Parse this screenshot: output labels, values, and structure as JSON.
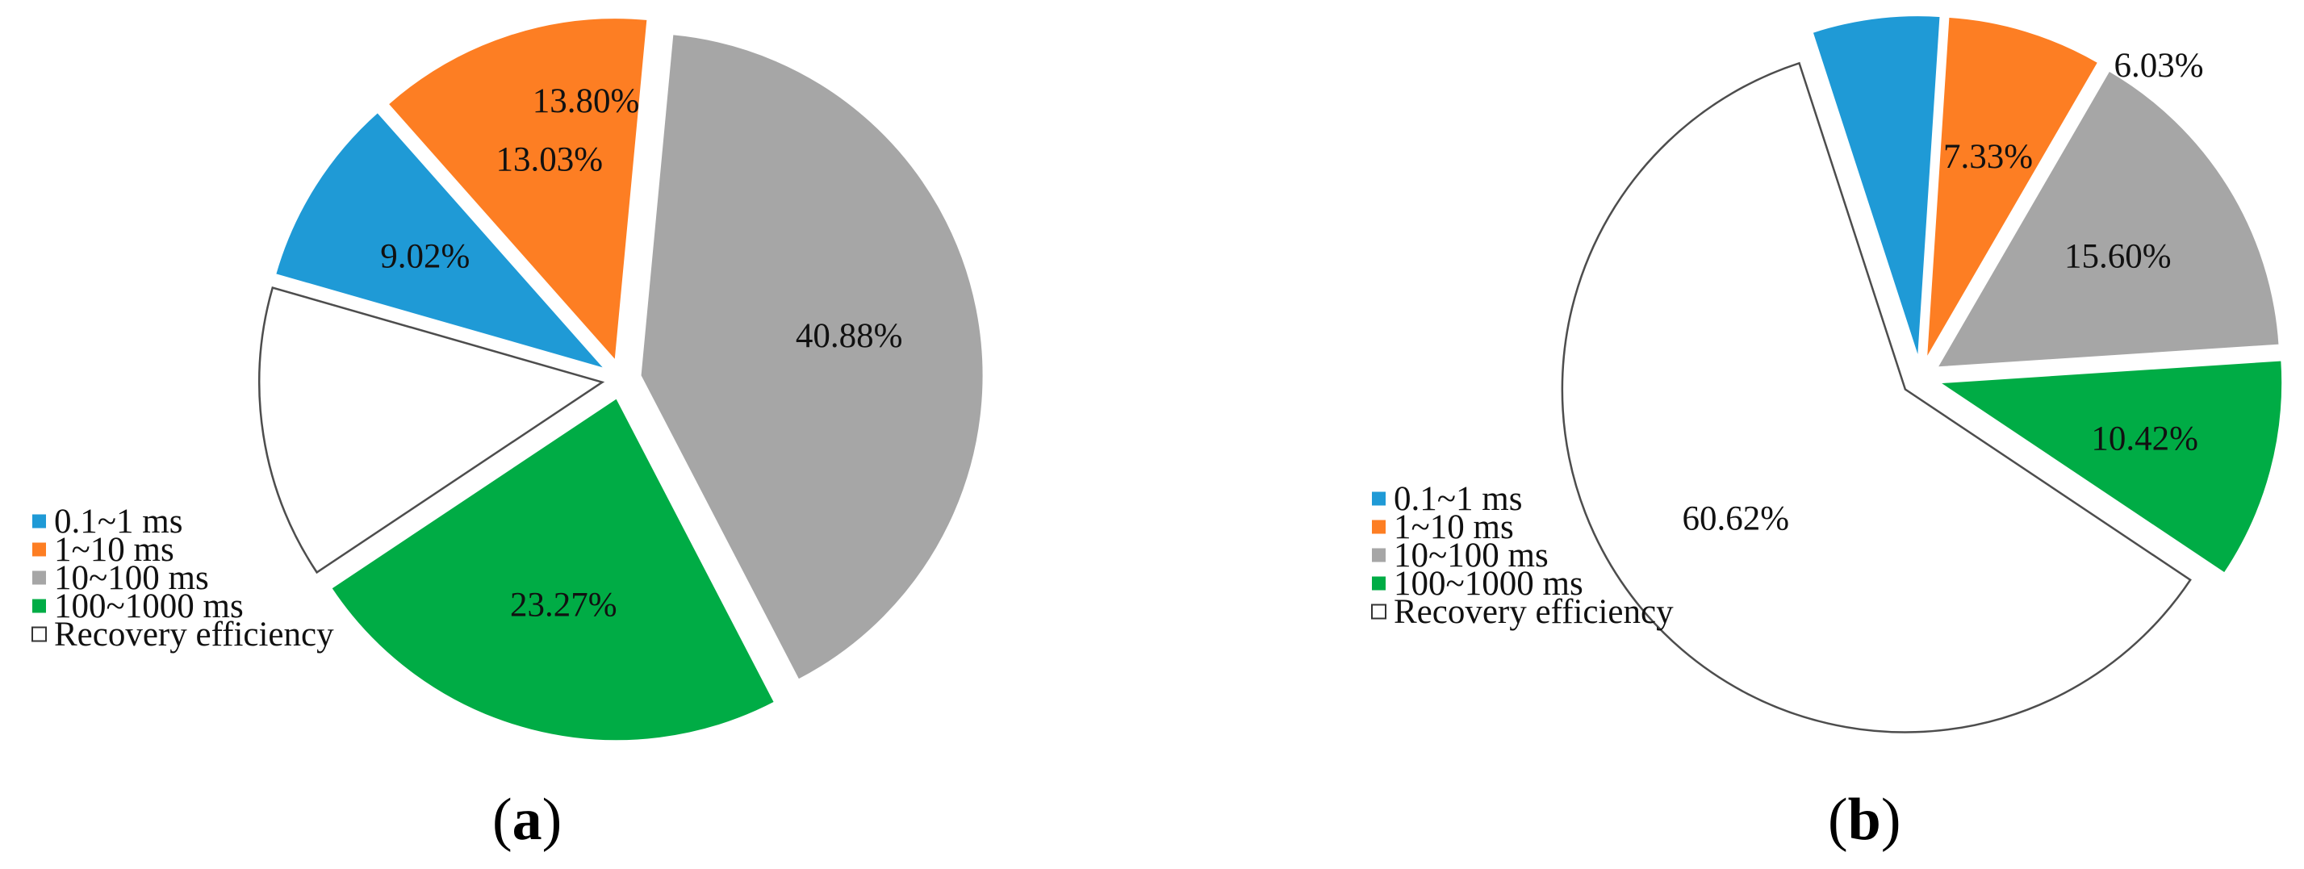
{
  "colors": {
    "0.1~1 ms": "#1f9ad6",
    "1~10 ms": "#fd7e23",
    "10~100 ms": "#a6a6a6",
    "100~1000 ms": "#00ac45",
    "Recovery efficiency": "#ffffff",
    "outline": "#4d4d4d"
  },
  "legend": [
    "0.1~1 ms",
    "1~10 ms",
    "10~100 ms",
    "100~1000 ms",
    "Recovery efficiency"
  ],
  "chart_data": [
    {
      "type": "pie",
      "panel_label": "a",
      "legend_placement": "bottom-left",
      "slices": [
        {
          "name": "0.1~1 ms",
          "value": 9.02,
          "label": "9.02%"
        },
        {
          "name": "1~10 ms",
          "value": 13.03,
          "label": "13.03%"
        },
        {
          "name": "10~100 ms",
          "value": 40.88,
          "label": "40.88%"
        },
        {
          "name": "100~1000 ms",
          "value": 23.27,
          "label": "23.27%"
        },
        {
          "name": "Recovery efficiency",
          "value": 13.8,
          "label": "13.80%"
        }
      ]
    },
    {
      "type": "pie",
      "panel_label": "b",
      "legend_placement": "bottom-left",
      "slices": [
        {
          "name": "0.1~1 ms",
          "value": 6.03,
          "label": "6.03%"
        },
        {
          "name": "1~10 ms",
          "value": 7.33,
          "label": "7.33%"
        },
        {
          "name": "10~100 ms",
          "value": 15.6,
          "label": "15.60%"
        },
        {
          "name": "100~1000 ms",
          "value": 10.42,
          "label": "10.42%"
        },
        {
          "name": "Recovery efficiency",
          "value": 60.62,
          "label": "60.62%"
        }
      ]
    }
  ]
}
